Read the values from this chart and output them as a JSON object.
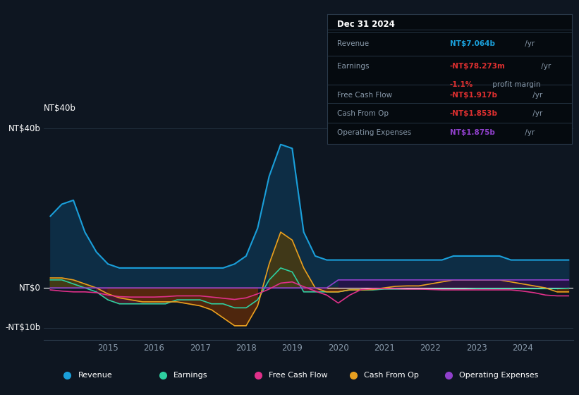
{
  "bg_color": "#0e1621",
  "plot_bg_color": "#0e1621",
  "x_years": [
    2013.75,
    2014.0,
    2014.25,
    2014.5,
    2014.75,
    2015.0,
    2015.25,
    2015.5,
    2015.75,
    2016.0,
    2016.25,
    2016.5,
    2016.75,
    2017.0,
    2017.25,
    2017.5,
    2017.75,
    2018.0,
    2018.25,
    2018.5,
    2018.75,
    2019.0,
    2019.25,
    2019.5,
    2019.75,
    2020.0,
    2020.25,
    2020.5,
    2020.75,
    2021.0,
    2021.25,
    2021.5,
    2021.75,
    2022.0,
    2022.25,
    2022.5,
    2022.75,
    2023.0,
    2023.25,
    2023.5,
    2023.75,
    2024.0,
    2024.25,
    2024.5,
    2024.75,
    2025.0
  ],
  "revenue": [
    18,
    21,
    22,
    14,
    9,
    6,
    5,
    5,
    5,
    5,
    5,
    5,
    5,
    5,
    5,
    5,
    6,
    8,
    15,
    28,
    36,
    35,
    14,
    8,
    7,
    7,
    7,
    7,
    7,
    7,
    7,
    7,
    7,
    7,
    7,
    8,
    8,
    8,
    8,
    8,
    7,
    7,
    7,
    7,
    7,
    7
  ],
  "earnings": [
    2,
    2,
    1,
    0,
    -1,
    -3,
    -4,
    -4,
    -4,
    -4,
    -4,
    -3,
    -3,
    -3,
    -4,
    -4,
    -5,
    -5,
    -3,
    2,
    5,
    4,
    -1,
    -1,
    -1,
    -1,
    -0.5,
    -0.5,
    -0.5,
    -0.3,
    -0.3,
    -0.3,
    -0.3,
    -0.3,
    -0.3,
    -0.3,
    -0.3,
    -0.2,
    -0.2,
    -0.2,
    -0.2,
    -0.2,
    -0.2,
    -0.2,
    -0.2,
    -0.1
  ],
  "free_cash_flow": [
    -0.5,
    -0.8,
    -1.0,
    -1.0,
    -1.2,
    -1.8,
    -2.2,
    -2.3,
    -2.3,
    -2.3,
    -2.2,
    -2.0,
    -2.0,
    -2.0,
    -2.3,
    -2.6,
    -2.9,
    -2.5,
    -1.5,
    -0.3,
    1.2,
    1.5,
    0.3,
    -0.8,
    -1.8,
    -3.8,
    -1.8,
    -0.4,
    -0.2,
    -0.2,
    -0.2,
    -0.3,
    -0.3,
    -0.4,
    -0.5,
    -0.5,
    -0.5,
    -0.5,
    -0.5,
    -0.5,
    -0.5,
    -0.8,
    -1.2,
    -1.8,
    -2.0,
    -2.0
  ],
  "cash_from_op": [
    2.5,
    2.5,
    2.0,
    1.0,
    0,
    -1.5,
    -2.5,
    -3.0,
    -3.5,
    -3.5,
    -3.5,
    -3.5,
    -4.0,
    -4.5,
    -5.5,
    -7.5,
    -9.5,
    -9.5,
    -4.5,
    6,
    14,
    12,
    5,
    0,
    -1,
    -1,
    -0.5,
    -0.5,
    -0.4,
    0,
    0.4,
    0.5,
    0.5,
    1,
    1.5,
    2,
    2,
    2,
    2,
    2,
    1.5,
    1,
    0.5,
    0,
    -1,
    -1
  ],
  "operating_expenses": [
    0,
    0,
    0,
    0,
    0,
    0,
    0,
    0,
    0,
    0,
    0,
    0,
    0,
    0,
    0,
    0,
    0,
    0,
    0,
    0,
    0,
    0,
    0,
    0,
    0,
    2,
    2,
    2,
    2,
    2,
    2,
    2,
    2,
    2,
    2,
    2,
    2,
    2,
    2,
    2,
    2,
    2,
    2,
    2,
    2,
    2
  ],
  "revenue_color": "#1a9fda",
  "revenue_fill": "#0d2d45",
  "earnings_color": "#2ecfa0",
  "earnings_fill_pos": "#1a4a3a",
  "earnings_fill_neg": "#4a1a2a",
  "cash_from_op_color": "#e8a020",
  "cash_from_op_fill_pos": "#4a3a10",
  "cash_from_op_fill_neg": "#5a2a0a",
  "free_cash_flow_color": "#e0308a",
  "operating_expenses_color": "#9040cc",
  "operating_expenses_fill": "#2a104a",
  "ylim": [
    -13,
    43
  ],
  "yticks": [
    -10,
    0,
    40
  ],
  "ytick_labels": [
    "-NT$10b",
    "NT$0",
    "NT$40b"
  ],
  "xticks": [
    2015,
    2016,
    2017,
    2018,
    2019,
    2020,
    2021,
    2022,
    2023,
    2024
  ],
  "legend": [
    {
      "label": "Revenue",
      "color": "#1a9fda"
    },
    {
      "label": "Earnings",
      "color": "#2ecfa0"
    },
    {
      "label": "Free Cash Flow",
      "color": "#e0308a"
    },
    {
      "label": "Cash From Op",
      "color": "#e8a020"
    },
    {
      "label": "Operating Expenses",
      "color": "#9040cc"
    }
  ],
  "info_box": {
    "date": "Dec 31 2024",
    "rows": [
      {
        "label": "Revenue",
        "value": "NT$7.064b",
        "value_color": "#1a9fda",
        "suffix": " /yr"
      },
      {
        "label": "Earnings",
        "value": "-NT$78.273m",
        "value_color": "#e03030",
        "suffix": " /yr",
        "sub_value": "-1.1%",
        "sub_value_color": "#e03030",
        "sub_suffix": " profit margin"
      },
      {
        "label": "Free Cash Flow",
        "value": "-NT$1.917b",
        "value_color": "#e03030",
        "suffix": " /yr"
      },
      {
        "label": "Cash From Op",
        "value": "-NT$1.853b",
        "value_color": "#e03030",
        "suffix": " /yr"
      },
      {
        "label": "Operating Expenses",
        "value": "NT$1.875b",
        "value_color": "#9040cc",
        "suffix": " /yr"
      }
    ]
  }
}
